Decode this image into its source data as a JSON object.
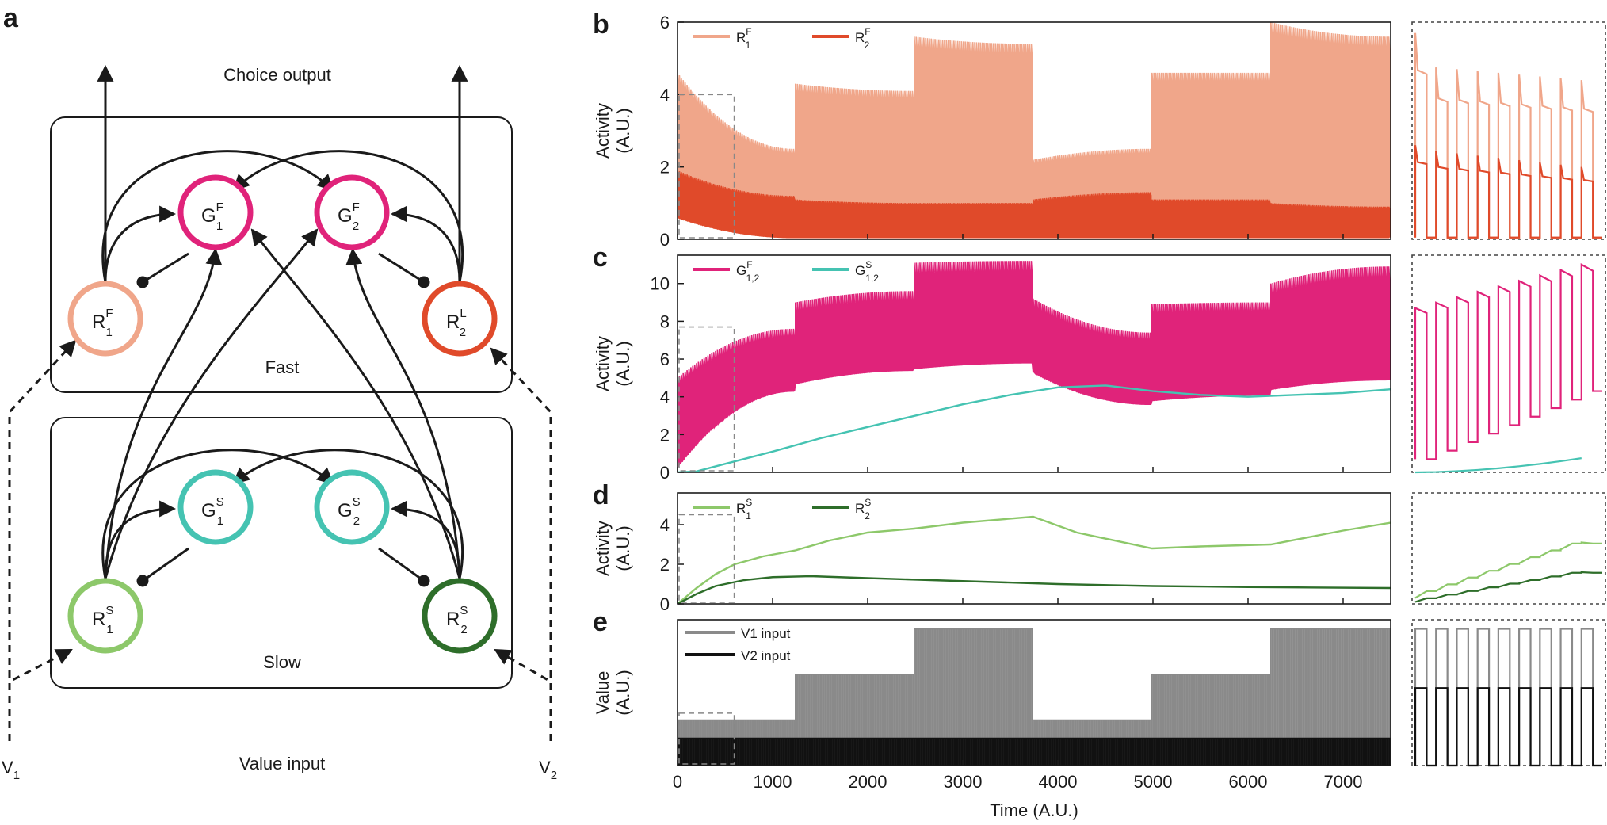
{
  "colors": {
    "r1f": "#f0a68a",
    "r2f": "#e04a2a",
    "g": "#e0237a",
    "gs": "#45c3b2",
    "r1s": "#8dc86a",
    "r2s": "#2e6e2a",
    "v1": "#8a8a8a",
    "v2": "#111111",
    "ink": "#1a1a1a"
  },
  "panel_a": {
    "letter": "a",
    "choice_output": "Choice output",
    "value_input": "Value input",
    "fast_label": "Fast",
    "slow_label": "Slow",
    "v1": {
      "base": "V",
      "sub": "1"
    },
    "v2": {
      "base": "V",
      "sub": "2"
    },
    "nodes": {
      "g1f": {
        "base": "G",
        "sup": "F",
        "sub": "1"
      },
      "g2f": {
        "base": "G",
        "sup": "F",
        "sub": "2"
      },
      "r1f": {
        "base": "R",
        "sup": "F",
        "sub": "1"
      },
      "r2l": {
        "base": "R",
        "sup": "L",
        "sub": "2"
      },
      "g1s": {
        "base": "G",
        "sup": "S",
        "sub": "1"
      },
      "g2s": {
        "base": "G",
        "sup": "S",
        "sub": "2"
      },
      "r1s": {
        "base": "R",
        "sup": "S",
        "sub": "1"
      },
      "r2s": {
        "base": "R",
        "sup": "S",
        "sub": "2"
      }
    }
  },
  "chart_data": [
    {
      "panel": "b",
      "type": "line",
      "ylabel": [
        "Activity",
        "(A.U.)"
      ],
      "xlim": [
        0,
        7500
      ],
      "ylim": [
        0,
        6
      ],
      "yticks": [
        0,
        2,
        4,
        6
      ],
      "series": [
        {
          "name": "R",
          "sup": "F",
          "sub": "1",
          "color_key": "r1f",
          "form": "oscillation",
          "blocks": [
            {
              "x": [
                0,
                1240
              ],
              "peak": [
                4.6,
                2.5
              ],
              "trough": [
                1.2,
                0.2
              ]
            },
            {
              "x": [
                1240,
                2490
              ],
              "peak": [
                4.3,
                4.1
              ],
              "trough": [
                0.2,
                0.1
              ]
            },
            {
              "x": [
                2490,
                3740
              ],
              "peak": [
                5.6,
                5.4
              ],
              "trough": [
                0.1,
                0.1
              ]
            },
            {
              "x": [
                3740,
                4990
              ],
              "peak": [
                2.2,
                2.5
              ],
              "trough": [
                0.1,
                0.1
              ]
            },
            {
              "x": [
                4990,
                6240
              ],
              "peak": [
                4.6,
                4.6
              ],
              "trough": [
                0.1,
                0.1
              ]
            },
            {
              "x": [
                6240,
                7500
              ],
              "peak": [
                6.0,
                5.6
              ],
              "trough": [
                0.1,
                0.1
              ]
            }
          ]
        },
        {
          "name": "R",
          "sup": "F",
          "sub": "2",
          "color_key": "r2f",
          "form": "oscillation",
          "blocks": [
            {
              "x": [
                0,
                1240
              ],
              "peak": [
                1.9,
                1.2
              ],
              "trough": [
                0.6,
                0.05
              ]
            },
            {
              "x": [
                1240,
                2490
              ],
              "peak": [
                1.1,
                1.0
              ],
              "trough": [
                0.05,
                0.05
              ]
            },
            {
              "x": [
                2490,
                3740
              ],
              "peak": [
                1.0,
                1.0
              ],
              "trough": [
                0.05,
                0.05
              ]
            },
            {
              "x": [
                3740,
                4990
              ],
              "peak": [
                1.1,
                1.3
              ],
              "trough": [
                0.05,
                0.05
              ]
            },
            {
              "x": [
                4990,
                6240
              ],
              "peak": [
                1.1,
                1.1
              ],
              "trough": [
                0.05,
                0.05
              ]
            },
            {
              "x": [
                6240,
                7500
              ],
              "peak": [
                1.0,
                0.9
              ],
              "trough": [
                0.05,
                0.05
              ]
            }
          ]
        }
      ],
      "zoom_box": {
        "x": [
          0,
          580
        ],
        "y": [
          0,
          4
        ]
      },
      "inset": {
        "ylim": [
          0,
          6
        ],
        "series": [
          {
            "color_key": "r1f",
            "peak_start": 4.8,
            "peak_end": 4.4,
            "peak_first": 5.7,
            "trough": 0.05
          },
          {
            "color_key": "r2f",
            "peak_start": 2.5,
            "peak_end": 2.0,
            "peak_first": 2.6,
            "trough": 0.05
          }
        ]
      }
    },
    {
      "panel": "c",
      "type": "line",
      "ylabel": [
        "Activity",
        "(A.U.)"
      ],
      "xlim": [
        0,
        7500
      ],
      "ylim": [
        0,
        11.5
      ],
      "yticks": [
        0,
        2,
        4,
        6,
        8,
        10
      ],
      "series": [
        {
          "name": "G",
          "sup": "F",
          "sub": "1,2",
          "color_key": "g",
          "form": "oscillation",
          "blocks": [
            {
              "x": [
                0,
                1240
              ],
              "peak": [
                5.0,
                7.6
              ],
              "trough": [
                0.3,
                4.3
              ]
            },
            {
              "x": [
                1240,
                2490
              ],
              "peak": [
                9.0,
                9.6
              ],
              "trough": [
                4.7,
                5.4
              ]
            },
            {
              "x": [
                2490,
                3740
              ],
              "peak": [
                11.1,
                11.2
              ],
              "trough": [
                5.5,
                5.8
              ]
            },
            {
              "x": [
                3740,
                4990
              ],
              "peak": [
                9.2,
                7.4
              ],
              "trough": [
                5.3,
                3.6
              ]
            },
            {
              "x": [
                4990,
                6240
              ],
              "peak": [
                8.9,
                9.0
              ],
              "trough": [
                3.8,
                4.1
              ]
            },
            {
              "x": [
                6240,
                7500
              ],
              "peak": [
                10.0,
                10.9
              ],
              "trough": [
                4.4,
                4.9
              ]
            }
          ]
        },
        {
          "name": "G",
          "sup": "S",
          "sub": "1,2",
          "color_key": "gs",
          "form": "smooth",
          "x": [
            0,
            200,
            500,
            1000,
            1500,
            2000,
            2500,
            3000,
            3500,
            4000,
            4500,
            5000,
            5500,
            6000,
            6500,
            7000,
            7500
          ],
          "y": [
            0,
            0.05,
            0.45,
            1.1,
            1.8,
            2.4,
            3.0,
            3.6,
            4.1,
            4.5,
            4.6,
            4.3,
            4.1,
            4.0,
            4.1,
            4.2,
            4.4
          ]
        }
      ],
      "zoom_box": {
        "x": [
          0,
          580
        ],
        "y": [
          0,
          7.7
        ]
      },
      "inset": {
        "ylim": [
          0,
          11.5
        ],
        "series": [
          {
            "color_key": "g",
            "form": "square",
            "peak_start": 8.7,
            "peak_end": 11.0,
            "trough_start": 0.7,
            "trough_end": 4.3
          },
          {
            "color_key": "gs",
            "form": "curve",
            "start": 0.0,
            "end": 0.75
          }
        ]
      }
    },
    {
      "panel": "d",
      "type": "line",
      "ylabel": [
        "Activity",
        "(A.U.)"
      ],
      "xlim": [
        0,
        7500
      ],
      "ylim": [
        0,
        5.6
      ],
      "yticks": [
        0,
        2,
        4
      ],
      "series": [
        {
          "name": "R",
          "sup": "S",
          "sub": "1",
          "color_key": "r1s",
          "form": "smooth",
          "x": [
            0,
            200,
            400,
            600,
            900,
            1240,
            1600,
            2000,
            2490,
            3000,
            3740,
            4200,
            4990,
            5500,
            6240,
            7000,
            7500
          ],
          "y": [
            0,
            0.8,
            1.5,
            2.0,
            2.4,
            2.7,
            3.2,
            3.6,
            3.8,
            4.1,
            4.4,
            3.6,
            2.8,
            2.9,
            3.0,
            3.7,
            4.1
          ]
        },
        {
          "name": "R",
          "sup": "S",
          "sub": "2",
          "color_key": "r2s",
          "form": "smooth",
          "x": [
            0,
            200,
            400,
            700,
            1000,
            1400,
            2000,
            3000,
            4000,
            5000,
            6000,
            7500
          ],
          "y": [
            0,
            0.5,
            0.9,
            1.2,
            1.35,
            1.4,
            1.3,
            1.15,
            1.0,
            0.9,
            0.85,
            0.8
          ]
        }
      ],
      "zoom_box": {
        "x": [
          0,
          580
        ],
        "y": [
          0,
          4.5
        ]
      },
      "inset": {
        "ylim": [
          0,
          5.6
        ],
        "series": [
          {
            "color_key": "r1s",
            "form": "stair",
            "start": 0.3,
            "end": 3.1
          },
          {
            "color_key": "r2s",
            "form": "stair",
            "start": 0.1,
            "end": 1.6
          }
        ]
      }
    },
    {
      "panel": "e",
      "type": "line",
      "ylabel": [
        "Value",
        "(A.U.)"
      ],
      "xlabel": "Time (A.U.)",
      "xlim": [
        0,
        7500
      ],
      "ylim": [
        0,
        6.4
      ],
      "yticks": [],
      "xticks": [
        0,
        1000,
        2000,
        3000,
        4000,
        5000,
        6000,
        7000
      ],
      "legend_labels": [
        "V1 input",
        "V2 input"
      ],
      "series": [
        {
          "name": "V1 input",
          "color_key": "v1",
          "form": "square",
          "blocks": [
            {
              "x": [
                0,
                1240
              ],
              "high": 2.0
            },
            {
              "x": [
                1240,
                2490
              ],
              "high": 4.0
            },
            {
              "x": [
                2490,
                3740
              ],
              "high": 6.0
            },
            {
              "x": [
                3740,
                4990
              ],
              "high": 2.0
            },
            {
              "x": [
                4990,
                6240
              ],
              "high": 4.0
            },
            {
              "x": [
                6240,
                7500
              ],
              "high": 6.0
            }
          ]
        },
        {
          "name": "V2 input",
          "color_key": "v2",
          "form": "square",
          "blocks": [
            {
              "x": [
                0,
                7500
              ],
              "high": 1.2
            }
          ]
        }
      ],
      "zoom_box": {
        "x": [
          0,
          580
        ],
        "y": [
          0,
          2.3
        ]
      },
      "inset": {
        "ylim": [
          0,
          6.4
        ],
        "series": [
          {
            "color_key": "v1",
            "form": "square",
            "high": 6.0
          },
          {
            "color_key": "v2",
            "form": "square",
            "high": 3.4
          }
        ]
      }
    }
  ]
}
